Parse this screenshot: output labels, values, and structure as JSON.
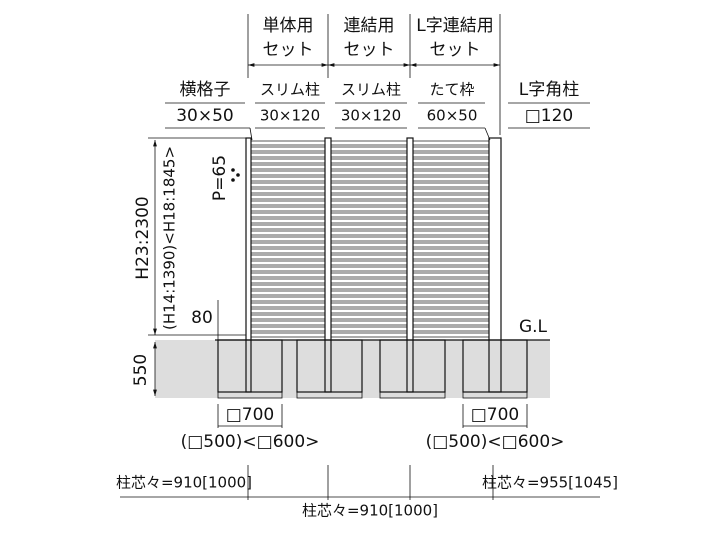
{
  "header": {
    "set_single": {
      "line1": "単体用",
      "line2": "セット"
    },
    "set_linked": {
      "line1": "連結用",
      "line2": "セット"
    },
    "set_l_linked": {
      "line1": "L字連結用",
      "line2": "セット"
    }
  },
  "parts": {
    "rail": {
      "name": "横格子",
      "size": "30×50"
    },
    "post1": {
      "name": "スリム柱",
      "size": "30×120"
    },
    "post2": {
      "name": "スリム柱",
      "size": "30×120"
    },
    "frame": {
      "name": "たて枠",
      "size": "60×50"
    },
    "corner_post": {
      "name": "L字角柱",
      "size": "□120"
    }
  },
  "dimensions": {
    "pitch": "P=65",
    "height": "H23:2300",
    "height_alt": "(H14:1390)<H18:1845>",
    "gap": "80",
    "depth": "550",
    "ground": "G.L",
    "footing_left": {
      "size": "□700",
      "alt": "(□500)<□600>"
    },
    "footing_right": {
      "size": "□700",
      "alt": "(□500)<□600>"
    },
    "pitch_left": "柱芯々=910[1000]",
    "pitch_right": "柱芯々=955[1045]",
    "pitch_bottom": "柱芯々=910[1000]"
  }
}
